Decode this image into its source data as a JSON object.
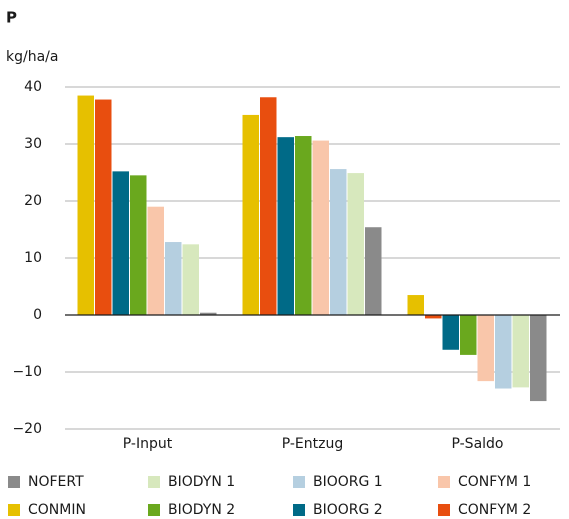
{
  "chart_data": {
    "type": "bar",
    "title": "P",
    "y_label": "kg/ha/a",
    "categories": [
      "P-Input",
      "P-Entzug",
      "P-Saldo"
    ],
    "series": [
      {
        "name": "CONMIN",
        "color": "#e6c000",
        "values": [
          38.5,
          35.1,
          3.5
        ]
      },
      {
        "name": "CONFYM 2",
        "color": "#e84e0f",
        "values": [
          37.8,
          38.2,
          -0.6
        ]
      },
      {
        "name": "BIOORG 2",
        "color": "#006a87",
        "values": [
          25.2,
          31.2,
          -6.1
        ]
      },
      {
        "name": "BIODYN 2",
        "color": "#6aa81e",
        "values": [
          24.5,
          31.4,
          -7
        ]
      },
      {
        "name": "CONFYM 1",
        "color": "#f9c6aa",
        "values": [
          19,
          30.6,
          -11.6
        ]
      },
      {
        "name": "BIOORG 1",
        "color": "#b5cfe0",
        "values": [
          12.8,
          25.6,
          -12.9
        ]
      },
      {
        "name": "BIODYN 1",
        "color": "#d7e8bd",
        "values": [
          12.4,
          24.9,
          -12.7
        ]
      },
      {
        "name": "NOFERT",
        "color": "#8a8a8a",
        "values": [
          0.4,
          15.4,
          -15.1
        ]
      }
    ],
    "ylim": [
      -20,
      40
    ],
    "yticks": [
      {
        "value": -20,
        "label": "−20"
      },
      {
        "value": -10,
        "label": "−10"
      },
      0,
      10,
      20,
      30,
      40
    ],
    "grid": true
  }
}
